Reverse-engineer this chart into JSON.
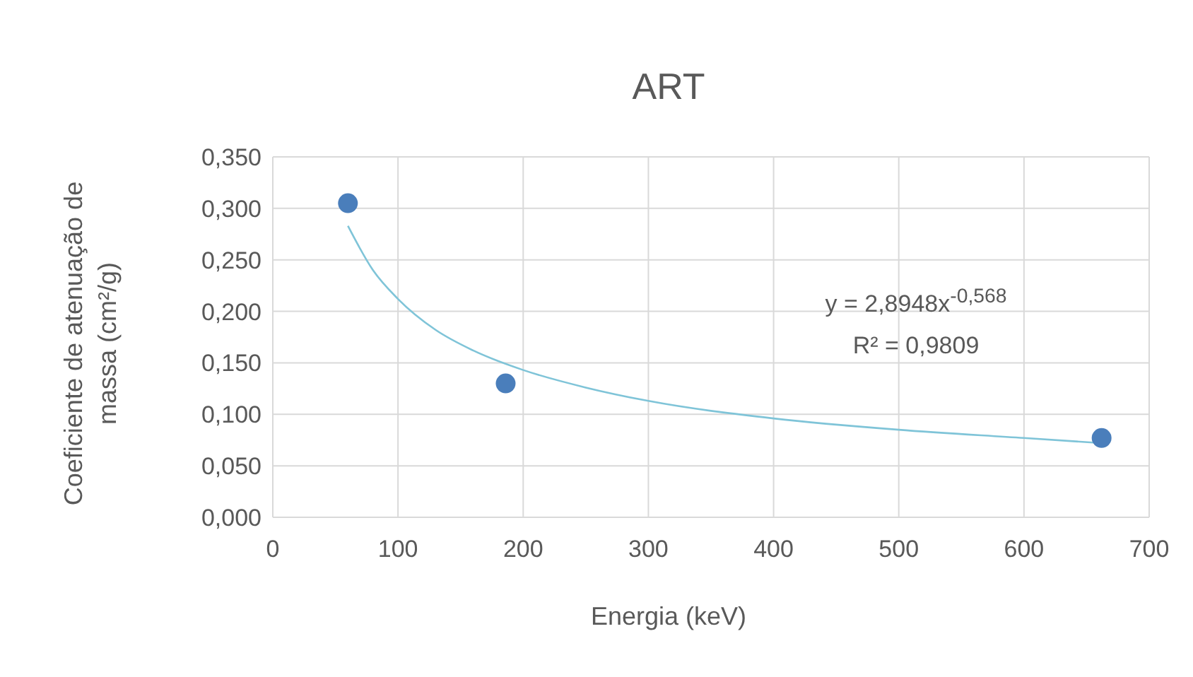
{
  "chart_data": {
    "type": "scatter",
    "title": "ART",
    "xlabel": "Energia (keV)",
    "ylabel": "Coeficiente de atenuação de massa (cm²/g)",
    "xlim": [
      0,
      700
    ],
    "xticks": [
      0,
      100,
      200,
      300,
      400,
      500,
      600,
      700
    ],
    "ylim": [
      0,
      0.35
    ],
    "yticks": [
      {
        "value": 0,
        "label": "0,000"
      },
      {
        "value": 0.05,
        "label": "0,050"
      },
      {
        "value": 0.1,
        "label": "0,100"
      },
      {
        "value": 0.15,
        "label": "0,150"
      },
      {
        "value": 0.2,
        "label": "0,200"
      },
      {
        "value": 0.25,
        "label": "0,250"
      },
      {
        "value": 0.3,
        "label": "0,300"
      },
      {
        "value": 0.35,
        "label": "0,350"
      }
    ],
    "grid": true,
    "marker": "circle",
    "series": [
      {
        "type": "line",
        "color": "#7fc4d8",
        "marker": "none",
        "x": [
          60,
          80,
          100,
          130,
          160,
          200,
          250,
          300,
          400,
          500,
          600,
          662
        ],
        "values": [
          0.283,
          0.24,
          0.212,
          0.182,
          0.162,
          0.143,
          0.126,
          0.113,
          0.096,
          0.085,
          0.077,
          0.072
        ]
      },
      {
        "color": "#4a7ebb",
        "x": [
          60,
          186,
          662
        ],
        "values": [
          0.305,
          0.13,
          0.077
        ]
      }
    ],
    "annotations": [
      "y = 2,8948x$^{-0,568}$",
      "R² = 0,9809"
    ]
  }
}
